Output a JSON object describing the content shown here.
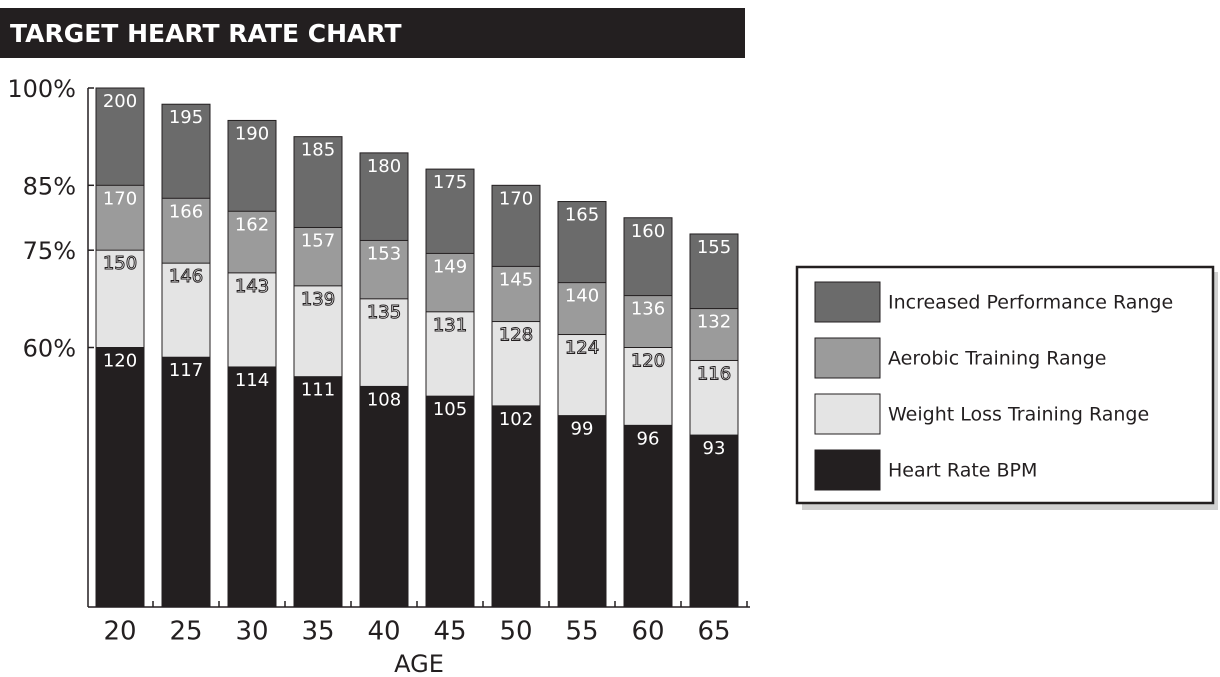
{
  "chart_data": {
    "type": "bar",
    "layering": "overlap",
    "title": "TARGET HEART RATE CHART",
    "x_label": "AGE",
    "categories": [
      "20",
      "25",
      "30",
      "35",
      "40",
      "45",
      "50",
      "55",
      "60",
      "65"
    ],
    "series": [
      {
        "name": "Increased Performance Range",
        "color": "#6b6b6b",
        "values": [
          200,
          195,
          190,
          185,
          180,
          175,
          170,
          165,
          160,
          155
        ]
      },
      {
        "name": "Aerobic Training Range",
        "color": "#9b9b9b",
        "values": [
          170,
          166,
          162,
          157,
          153,
          149,
          145,
          140,
          136,
          132
        ]
      },
      {
        "name": "Weight Loss Training Range",
        "color": "#e4e4e4",
        "values": [
          150,
          146,
          143,
          139,
          135,
          131,
          128,
          124,
          120,
          116
        ]
      },
      {
        "name": "Heart Rate BPM",
        "color": "#231f20",
        "values": [
          120,
          117,
          114,
          111,
          108,
          105,
          102,
          99,
          96,
          93
        ]
      }
    ],
    "ylim": [
      40,
      200
    ],
    "yticks": [
      {
        "value": 200,
        "label": "100%"
      },
      {
        "value": 170,
        "label": "85%"
      },
      {
        "value": 150,
        "label": "75%"
      },
      {
        "value": 120,
        "label": "60%"
      }
    ],
    "legend": "right"
  }
}
